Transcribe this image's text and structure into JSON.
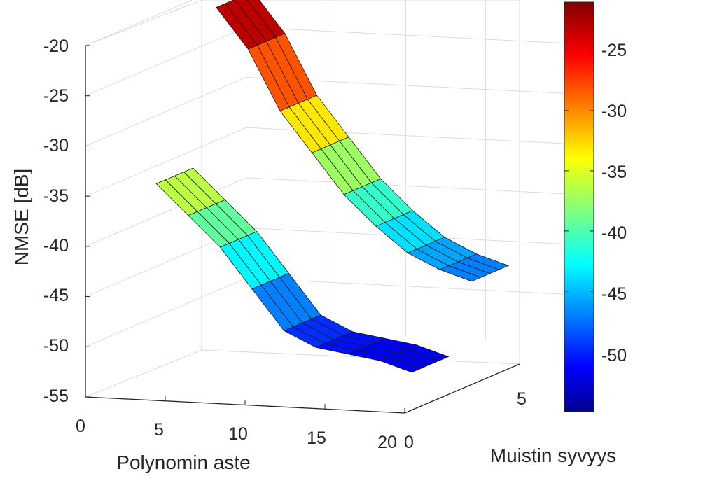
{
  "chart_data": {
    "type": "surface",
    "zlabel": "NMSE [dB]",
    "xlabel": "Polynomin aste",
    "ylabel": "Muistin syvyys",
    "zticks": [
      "-20",
      "-25",
      "-30",
      "-35",
      "-40",
      "-45",
      "-50",
      "-55"
    ],
    "xticks": [
      "0",
      "5",
      "10",
      "15",
      "20"
    ],
    "yticks": [
      "0",
      "5"
    ],
    "colorbar_ticks": [
      "-25",
      "-30",
      "-35",
      "-40",
      "-45",
      "-50"
    ],
    "colormap": "jet",
    "zlim": [
      -55,
      -20
    ],
    "clim": [
      -55,
      -21
    ],
    "grid": true,
    "surface_front": {
      "memory_depth": 1,
      "polynomial_degree": [
        3,
        5,
        7,
        9,
        11,
        13,
        15,
        17,
        19
      ],
      "nmse_db": [
        -34.5,
        -37.5,
        -40.5,
        -44.5,
        -48.5,
        -50,
        -50.5,
        -51,
        -52
      ]
    },
    "surface_back": {
      "memory_depth": 5,
      "polynomial_degree": [
        1,
        3,
        5,
        7,
        9,
        11,
        13,
        15,
        17
      ],
      "nmse_db": [
        -21,
        -25,
        -31,
        -35,
        -39,
        -42,
        -44.5,
        -46,
        -47
      ]
    }
  }
}
